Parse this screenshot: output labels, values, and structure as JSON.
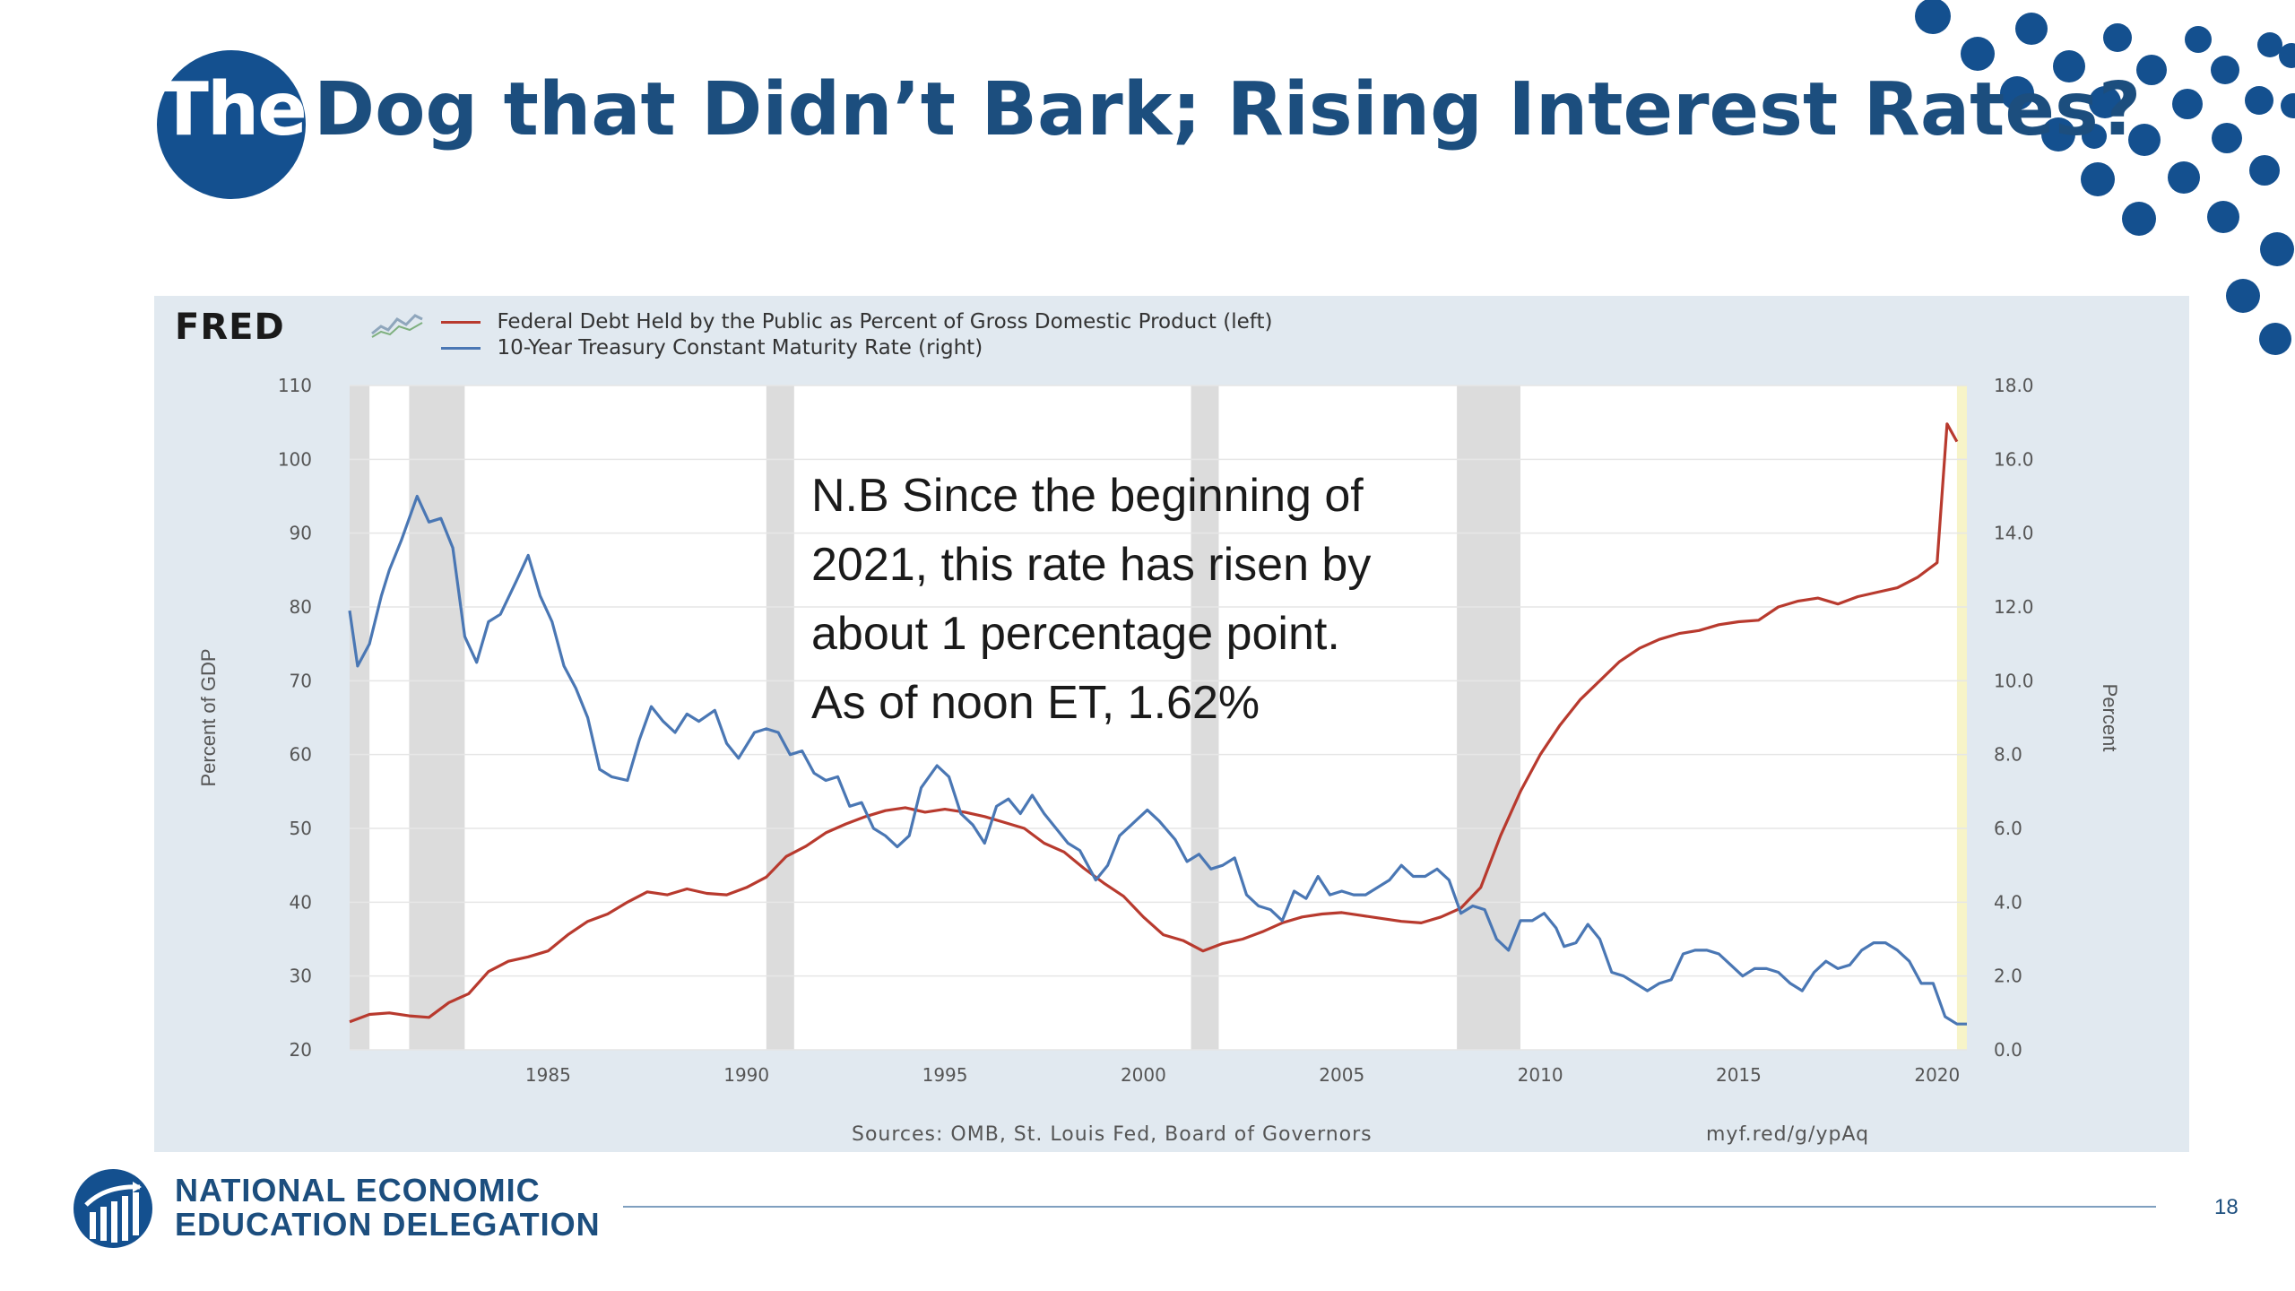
{
  "slide": {
    "title_prefix": "The",
    "title_main": "Dog that Didn’t Bark; Rising Interest Rates?",
    "page_number": "18",
    "org_line1": "NATIONAL ECONOMIC",
    "org_line2": "EDUCATION DELEGATION",
    "colors": {
      "brand_blue": "#14508f",
      "title_text": "#1c4e7e"
    }
  },
  "annotation": {
    "lines": [
      "N.B Since the beginning of",
      "2021, this rate has risen by",
      "about 1 percentage point.",
      "As of noon ET, 1.62%"
    ]
  },
  "chart_data": {
    "type": "line",
    "brand": "FRED",
    "sources": "Sources: OMB, St. Louis Fed, Board of Governors",
    "shortlink": "myf.red/g/ypAq",
    "x_ticks": [
      "1985",
      "1990",
      "1995",
      "2000",
      "2005",
      "2010",
      "2015",
      "2020"
    ],
    "xlim": [
      1980.0,
      2020.75
    ],
    "y_left": {
      "label": "Percent of GDP",
      "ticks": [
        "110",
        "100",
        "90",
        "80",
        "70",
        "60",
        "50",
        "40",
        "30",
        "20"
      ],
      "lim": [
        20,
        110
      ]
    },
    "y_right": {
      "label": "Percent",
      "ticks": [
        "18.0",
        "16.0",
        "14.0",
        "12.0",
        "10.0",
        "8.0",
        "6.0",
        "4.0",
        "2.0",
        "0.0"
      ],
      "lim": [
        0,
        18
      ]
    },
    "recessions": [
      [
        1980.0,
        1980.5
      ],
      [
        1981.5,
        1982.9
      ],
      [
        1990.5,
        1991.2
      ],
      [
        2001.2,
        2001.9
      ],
      [
        2007.9,
        2009.5
      ]
    ],
    "highlight_band": [
      2020.5,
      2020.75
    ],
    "series": [
      {
        "name": "Federal Debt Held by the Public as Percent of Gross Domestic Product (left)",
        "axis": "left",
        "color": "#b83a2e",
        "points": [
          [
            1980.0,
            23.8
          ],
          [
            1980.5,
            24.8
          ],
          [
            1981.0,
            25.0
          ],
          [
            1981.5,
            24.6
          ],
          [
            1982.0,
            24.4
          ],
          [
            1982.5,
            26.4
          ],
          [
            1983.0,
            27.6
          ],
          [
            1983.5,
            30.6
          ],
          [
            1984.0,
            32.0
          ],
          [
            1984.5,
            32.6
          ],
          [
            1985.0,
            33.4
          ],
          [
            1985.5,
            35.6
          ],
          [
            1986.0,
            37.4
          ],
          [
            1986.5,
            38.4
          ],
          [
            1987.0,
            40.0
          ],
          [
            1987.5,
            41.4
          ],
          [
            1988.0,
            41.0
          ],
          [
            1988.5,
            41.8
          ],
          [
            1989.0,
            41.2
          ],
          [
            1989.5,
            41.0
          ],
          [
            1990.0,
            42.0
          ],
          [
            1990.5,
            43.4
          ],
          [
            1991.0,
            46.2
          ],
          [
            1991.5,
            47.6
          ],
          [
            1992.0,
            49.4
          ],
          [
            1992.5,
            50.6
          ],
          [
            1993.0,
            51.6
          ],
          [
            1993.5,
            52.4
          ],
          [
            1994.0,
            52.8
          ],
          [
            1994.5,
            52.2
          ],
          [
            1995.0,
            52.6
          ],
          [
            1995.5,
            52.2
          ],
          [
            1996.0,
            51.6
          ],
          [
            1996.5,
            50.8
          ],
          [
            1997.0,
            50.0
          ],
          [
            1997.5,
            48.0
          ],
          [
            1998.0,
            46.8
          ],
          [
            1998.5,
            44.6
          ],
          [
            1999.0,
            42.6
          ],
          [
            1999.5,
            40.8
          ],
          [
            2000.0,
            38.0
          ],
          [
            2000.5,
            35.6
          ],
          [
            2001.0,
            34.8
          ],
          [
            2001.5,
            33.4
          ],
          [
            2002.0,
            34.4
          ],
          [
            2002.5,
            35.0
          ],
          [
            2003.0,
            36.0
          ],
          [
            2003.5,
            37.2
          ],
          [
            2004.0,
            38.0
          ],
          [
            2004.5,
            38.4
          ],
          [
            2005.0,
            38.6
          ],
          [
            2005.5,
            38.2
          ],
          [
            2006.0,
            37.8
          ],
          [
            2006.5,
            37.4
          ],
          [
            2007.0,
            37.2
          ],
          [
            2007.5,
            38.0
          ],
          [
            2008.0,
            39.2
          ],
          [
            2008.5,
            42.0
          ],
          [
            2009.0,
            49.0
          ],
          [
            2009.5,
            55.0
          ],
          [
            2010.0,
            60.0
          ],
          [
            2010.5,
            64.0
          ],
          [
            2011.0,
            67.4
          ],
          [
            2011.5,
            70.0
          ],
          [
            2012.0,
            72.6
          ],
          [
            2012.5,
            74.4
          ],
          [
            2013.0,
            75.6
          ],
          [
            2013.5,
            76.4
          ],
          [
            2014.0,
            76.8
          ],
          [
            2014.5,
            77.6
          ],
          [
            2015.0,
            78.0
          ],
          [
            2015.5,
            78.2
          ],
          [
            2016.0,
            80.0
          ],
          [
            2016.5,
            80.8
          ],
          [
            2017.0,
            81.2
          ],
          [
            2017.5,
            80.4
          ],
          [
            2018.0,
            81.4
          ],
          [
            2018.5,
            82.0
          ],
          [
            2019.0,
            82.6
          ],
          [
            2019.5,
            84.0
          ],
          [
            2020.0,
            86.0
          ],
          [
            2020.25,
            104.8
          ],
          [
            2020.5,
            102.4
          ]
        ]
      },
      {
        "name": "10-Year Treasury Constant Maturity Rate (right)",
        "axis": "right",
        "color": "#4a77b4",
        "points": [
          [
            1980.0,
            11.9
          ],
          [
            1980.2,
            10.4
          ],
          [
            1980.5,
            11.0
          ],
          [
            1980.8,
            12.3
          ],
          [
            1981.0,
            13.0
          ],
          [
            1981.3,
            13.8
          ],
          [
            1981.7,
            15.0
          ],
          [
            1982.0,
            14.3
          ],
          [
            1982.3,
            14.4
          ],
          [
            1982.6,
            13.6
          ],
          [
            1982.9,
            11.2
          ],
          [
            1983.2,
            10.5
          ],
          [
            1983.5,
            11.6
          ],
          [
            1983.8,
            11.8
          ],
          [
            1984.2,
            12.7
          ],
          [
            1984.5,
            13.4
          ],
          [
            1984.8,
            12.3
          ],
          [
            1985.1,
            11.6
          ],
          [
            1985.4,
            10.4
          ],
          [
            1985.7,
            9.8
          ],
          [
            1986.0,
            9.0
          ],
          [
            1986.3,
            7.6
          ],
          [
            1986.6,
            7.4
          ],
          [
            1987.0,
            7.3
          ],
          [
            1987.3,
            8.4
          ],
          [
            1987.6,
            9.3
          ],
          [
            1987.9,
            8.9
          ],
          [
            1988.2,
            8.6
          ],
          [
            1988.5,
            9.1
          ],
          [
            1988.8,
            8.9
          ],
          [
            1989.2,
            9.2
          ],
          [
            1989.5,
            8.3
          ],
          [
            1989.8,
            7.9
          ],
          [
            1990.2,
            8.6
          ],
          [
            1990.5,
            8.7
          ],
          [
            1990.8,
            8.6
          ],
          [
            1991.1,
            8.0
          ],
          [
            1991.4,
            8.1
          ],
          [
            1991.7,
            7.5
          ],
          [
            1992.0,
            7.3
          ],
          [
            1992.3,
            7.4
          ],
          [
            1992.6,
            6.6
          ],
          [
            1992.9,
            6.7
          ],
          [
            1993.2,
            6.0
          ],
          [
            1993.5,
            5.8
          ],
          [
            1993.8,
            5.5
          ],
          [
            1994.1,
            5.8
          ],
          [
            1994.4,
            7.1
          ],
          [
            1994.8,
            7.7
          ],
          [
            1995.1,
            7.4
          ],
          [
            1995.4,
            6.4
          ],
          [
            1995.7,
            6.1
          ],
          [
            1996.0,
            5.6
          ],
          [
            1996.3,
            6.6
          ],
          [
            1996.6,
            6.8
          ],
          [
            1996.9,
            6.4
          ],
          [
            1997.2,
            6.9
          ],
          [
            1997.5,
            6.4
          ],
          [
            1997.8,
            6.0
          ],
          [
            1998.1,
            5.6
          ],
          [
            1998.4,
            5.4
          ],
          [
            1998.8,
            4.6
          ],
          [
            1999.1,
            5.0
          ],
          [
            1999.4,
            5.8
          ],
          [
            1999.7,
            6.1
          ],
          [
            2000.1,
            6.5
          ],
          [
            2000.4,
            6.2
          ],
          [
            2000.8,
            5.7
          ],
          [
            2001.1,
            5.1
          ],
          [
            2001.4,
            5.3
          ],
          [
            2001.7,
            4.9
          ],
          [
            2002.0,
            5.0
          ],
          [
            2002.3,
            5.2
          ],
          [
            2002.6,
            4.2
          ],
          [
            2002.9,
            3.9
          ],
          [
            2003.2,
            3.8
          ],
          [
            2003.5,
            3.5
          ],
          [
            2003.8,
            4.3
          ],
          [
            2004.1,
            4.1
          ],
          [
            2004.4,
            4.7
          ],
          [
            2004.7,
            4.2
          ],
          [
            2005.0,
            4.3
          ],
          [
            2005.3,
            4.2
          ],
          [
            2005.6,
            4.2
          ],
          [
            2005.9,
            4.4
          ],
          [
            2006.2,
            4.6
          ],
          [
            2006.5,
            5.0
          ],
          [
            2006.8,
            4.7
          ],
          [
            2007.1,
            4.7
          ],
          [
            2007.4,
            4.9
          ],
          [
            2007.7,
            4.6
          ],
          [
            2008.0,
            3.7
          ],
          [
            2008.3,
            3.9
          ],
          [
            2008.6,
            3.8
          ],
          [
            2008.9,
            3.0
          ],
          [
            2009.2,
            2.7
          ],
          [
            2009.5,
            3.5
          ],
          [
            2009.8,
            3.5
          ],
          [
            2010.1,
            3.7
          ],
          [
            2010.4,
            3.3
          ],
          [
            2010.6,
            2.8
          ],
          [
            2010.9,
            2.9
          ],
          [
            2011.2,
            3.4
          ],
          [
            2011.5,
            3.0
          ],
          [
            2011.8,
            2.1
          ],
          [
            2012.1,
            2.0
          ],
          [
            2012.4,
            1.8
          ],
          [
            2012.7,
            1.6
          ],
          [
            2013.0,
            1.8
          ],
          [
            2013.3,
            1.9
          ],
          [
            2013.6,
            2.6
          ],
          [
            2013.9,
            2.7
          ],
          [
            2014.2,
            2.7
          ],
          [
            2014.5,
            2.6
          ],
          [
            2014.8,
            2.3
          ],
          [
            2015.1,
            2.0
          ],
          [
            2015.4,
            2.2
          ],
          [
            2015.7,
            2.2
          ],
          [
            2016.0,
            2.1
          ],
          [
            2016.3,
            1.8
          ],
          [
            2016.6,
            1.6
          ],
          [
            2016.9,
            2.1
          ],
          [
            2017.2,
            2.4
          ],
          [
            2017.5,
            2.2
          ],
          [
            2017.8,
            2.3
          ],
          [
            2018.1,
            2.7
          ],
          [
            2018.4,
            2.9
          ],
          [
            2018.7,
            2.9
          ],
          [
            2019.0,
            2.7
          ],
          [
            2019.3,
            2.4
          ],
          [
            2019.6,
            1.8
          ],
          [
            2019.9,
            1.8
          ],
          [
            2020.2,
            0.9
          ],
          [
            2020.5,
            0.7
          ],
          [
            2020.75,
            0.7
          ]
        ]
      }
    ]
  }
}
